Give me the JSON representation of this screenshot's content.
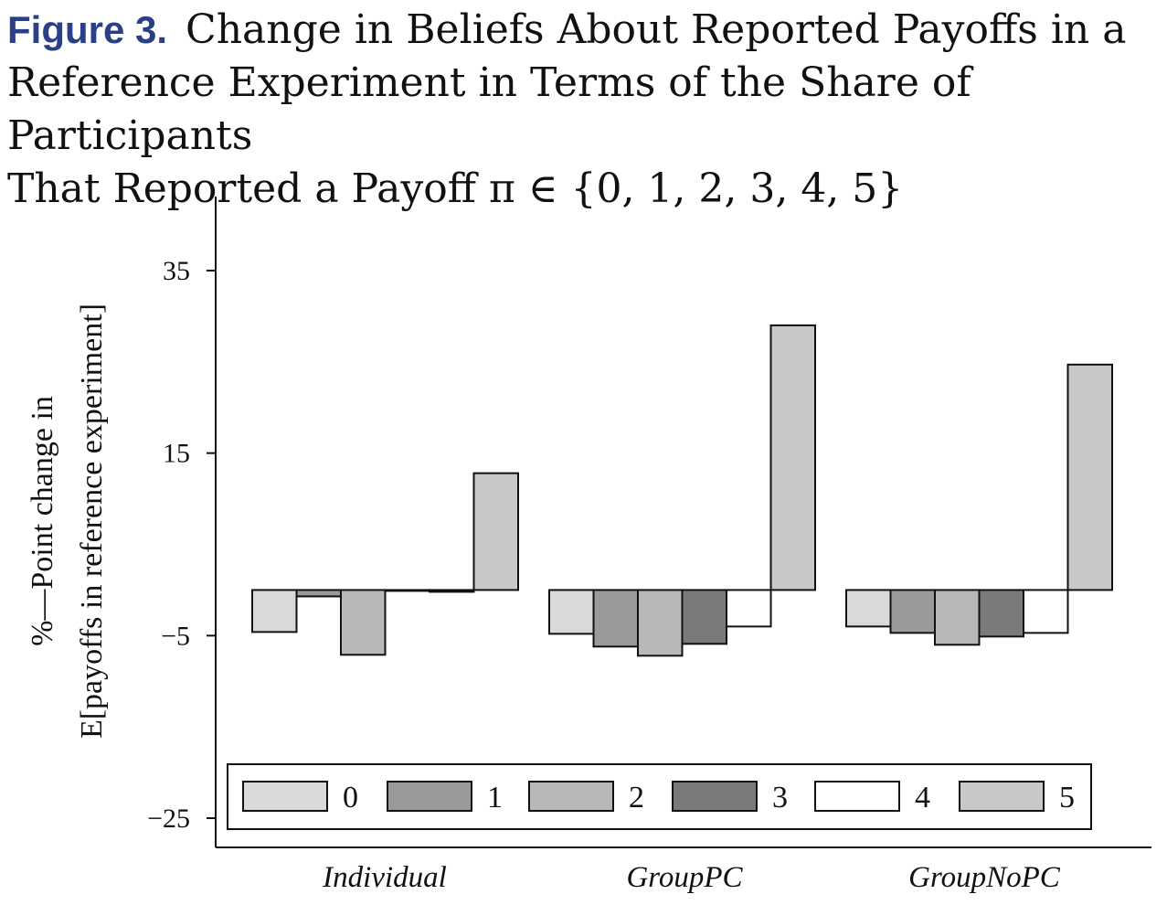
{
  "figure": {
    "label": "Figure 3.",
    "title_lines": [
      "Change in Beliefs About Reported Payoffs in a",
      "Reference Experiment in Terms of the Share of Participants",
      "That Reported a Payoff π ∈ {0, 1, 2, 3, 4, 5}"
    ]
  },
  "colors": {
    "payoff_0": "#d9d9d9",
    "payoff_1": "#9a9a9a",
    "payoff_2": "#b8b8b8",
    "payoff_3": "#7a7a7a",
    "payoff_4": "#ffffff",
    "payoff_5": "#c8c8c8"
  },
  "chart_data": {
    "type": "bar",
    "title": "",
    "xlabel": "",
    "ylabel_lines": [
      "%—Point change in",
      "E[payoffs in reference experiment]"
    ],
    "ylim": [
      -28,
      43
    ],
    "yticks": [
      35,
      15,
      -5,
      -25
    ],
    "ytick_labels": [
      "35",
      "15",
      "−5",
      "−25"
    ],
    "categories": [
      "Individual",
      "GroupPC",
      "GroupNoPC"
    ],
    "series": [
      {
        "name": "0",
        "values": [
          -4.6,
          -4.8,
          -4.0
        ]
      },
      {
        "name": "1",
        "values": [
          -0.7,
          -6.2,
          -4.7
        ]
      },
      {
        "name": "2",
        "values": [
          -7.1,
          -7.2,
          -6.0
        ]
      },
      {
        "name": "3",
        "values": [
          0.0,
          -5.9,
          -5.1
        ]
      },
      {
        "name": "4",
        "values": [
          -0.2,
          -4.0,
          -4.7
        ]
      },
      {
        "name": "5",
        "values": [
          12.8,
          29.0,
          24.7
        ]
      }
    ],
    "legend_position": "bottom",
    "grid": false
  }
}
